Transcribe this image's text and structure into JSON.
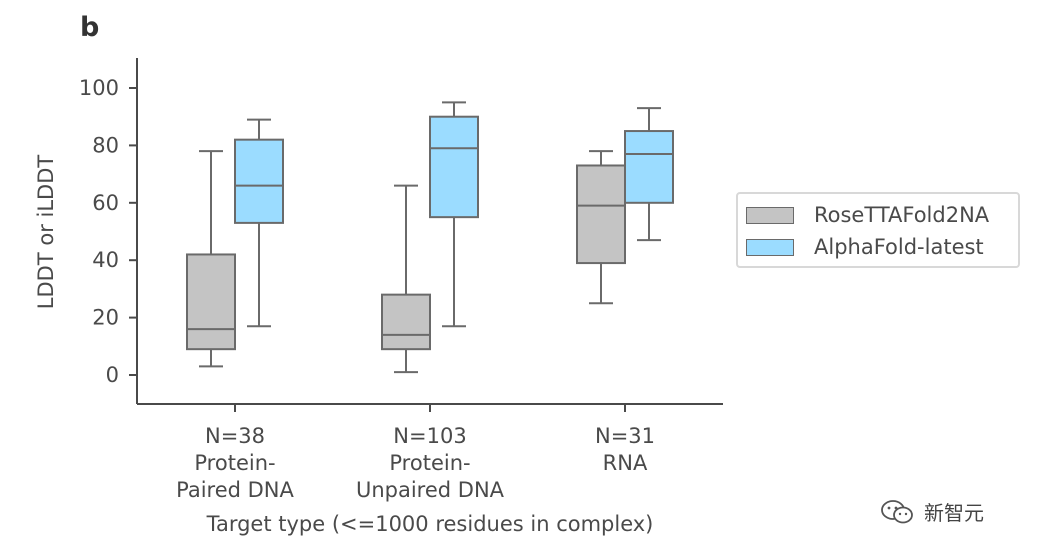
{
  "panel_label": "b",
  "chart_data": {
    "type": "box",
    "ylabel": "LDDT or iLDDT",
    "xlabel": "Target type (<=1000 residues in complex)",
    "ylim": [
      -10,
      110
    ],
    "yticks": [
      0,
      20,
      40,
      60,
      80,
      100
    ],
    "grid": false,
    "legend_position": "right",
    "categories": [
      [
        "N=38",
        "Protein-",
        "Paired DNA"
      ],
      [
        "N=103",
        "Protein-",
        "Unpaired DNA"
      ],
      [
        "N=31",
        "RNA"
      ]
    ],
    "series": [
      {
        "name": "RoseTTAFold2NA",
        "color": "#c4c4c4",
        "boxes": [
          {
            "whisker_low": 3,
            "q1": 9,
            "median": 16,
            "q3": 42,
            "whisker_high": 78
          },
          {
            "whisker_low": 1,
            "q1": 9,
            "median": 14,
            "q3": 28,
            "whisker_high": 66
          },
          {
            "whisker_low": 25,
            "q1": 39,
            "median": 59,
            "q3": 73,
            "whisker_high": 78
          }
        ]
      },
      {
        "name": "AlphaFold-latest",
        "color": "#9bdcff",
        "boxes": [
          {
            "whisker_low": 17,
            "q1": 53,
            "median": 66,
            "q3": 82,
            "whisker_high": 89
          },
          {
            "whisker_low": 17,
            "q1": 55,
            "median": 79,
            "q3": 90,
            "whisker_high": 95
          },
          {
            "whisker_low": 47,
            "q1": 60,
            "median": 77,
            "q3": 85,
            "whisker_high": 93
          }
        ]
      }
    ]
  },
  "watermark": {
    "text": "新智元",
    "icon": "wechat-icon"
  }
}
